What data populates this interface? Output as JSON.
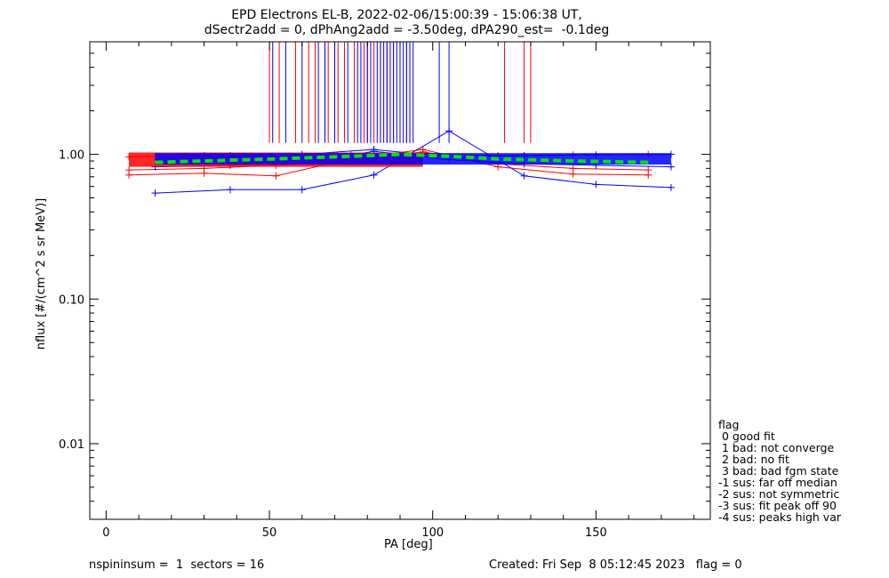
{
  "chart_data": {
    "type": "line",
    "title": "EPD Electrons EL-B, 2022-02-06/15:00:39 - 15:06:38 UT,",
    "subtitle": "dSectr2add = 0, dPhAng2add = -3.50deg, dPA290_est=  -0.1deg",
    "xlabel": "PA [deg]",
    "ylabel": "nflux [#/(cm^2 s sr MeV)]",
    "xlim": [
      -5,
      185
    ],
    "ylim": [
      0.003,
      6
    ],
    "yscale": "log",
    "x_ticks": [
      0,
      50,
      100,
      150
    ],
    "x_tick_labels": [
      "0",
      "50",
      "100",
      "150"
    ],
    "y_ticks": [
      0.01,
      0.1,
      1.0
    ],
    "y_tick_labels": [
      "0.01",
      "0.10",
      "1.00"
    ],
    "grid": false,
    "colors": {
      "red": "#ff0000",
      "blue": "#0000ff",
      "green": "#00e600"
    },
    "series": [
      {
        "color": "#ff0000",
        "x": [
          7,
          30,
          52,
          75,
          97,
          120,
          143,
          166
        ],
        "values": [
          0.72,
          0.74,
          0.71,
          0.93,
          1.08,
          0.82,
          0.73,
          0.72
        ]
      },
      {
        "color": "#ff0000",
        "x": [
          7,
          30,
          52,
          75,
          97,
          120,
          143,
          166
        ],
        "values": [
          0.78,
          0.8,
          0.84,
          0.9,
          1.04,
          0.86,
          0.8,
          0.78
        ]
      },
      {
        "color": "#ff0000",
        "x": [
          7,
          30,
          52,
          75,
          97,
          120,
          143,
          166
        ],
        "values": [
          0.96,
          0.98,
          0.97,
          0.99,
          1.02,
          0.98,
          0.99,
          1.0
        ]
      },
      {
        "color": "#0000ff",
        "x": [
          15,
          38,
          60,
          82,
          105,
          128,
          150,
          173
        ],
        "values": [
          0.54,
          0.57,
          0.57,
          0.72,
          1.45,
          0.71,
          0.62,
          0.59
        ]
      },
      {
        "color": "#0000ff",
        "x": [
          15,
          38,
          60,
          82,
          105,
          128,
          150,
          173
        ],
        "values": [
          0.82,
          0.84,
          0.87,
          1.05,
          0.92,
          0.86,
          0.84,
          0.82
        ]
      },
      {
        "color": "#0000ff",
        "x": [
          15,
          38,
          60,
          82,
          105,
          128,
          150,
          173
        ],
        "values": [
          0.97,
          0.98,
          1.0,
          1.08,
          0.96,
          0.98,
          0.99,
          1.0
        ]
      },
      {
        "color": "#00e600",
        "dashed": true,
        "x": [
          15,
          30,
          52,
          75,
          90,
          105,
          120,
          143,
          166
        ],
        "values": [
          0.88,
          0.9,
          0.93,
          0.97,
          1.0,
          0.97,
          0.93,
          0.9,
          0.88
        ]
      }
    ],
    "red_vertical_lines_x": [
      50,
      53,
      58,
      62,
      64,
      68,
      71,
      73,
      76,
      79,
      80,
      82,
      84,
      86,
      88,
      90,
      92,
      93,
      122,
      128,
      130
    ],
    "blue_vertical_lines_x": [
      51,
      55,
      60,
      65,
      67,
      70,
      74,
      77,
      78,
      80,
      81,
      83,
      84,
      85,
      86,
      87,
      88,
      89,
      90,
      91,
      92,
      93,
      94,
      102,
      105
    ]
  },
  "legend": {
    "header": "flag",
    "items": [
      " 0 good fit",
      " 1 bad: not converge",
      " 2 bad: no fit",
      " 3 bad: bad fgm state",
      "-1 sus: far off median",
      "-2 sus: not symmetric",
      "-3 sus: fit peak off 90",
      "-4 sus: peaks high var"
    ]
  },
  "footer": {
    "left": "nspininsum =  1  sectors = 16",
    "right": "Created: Fri Sep  8 05:12:45 2023   flag = 0"
  }
}
